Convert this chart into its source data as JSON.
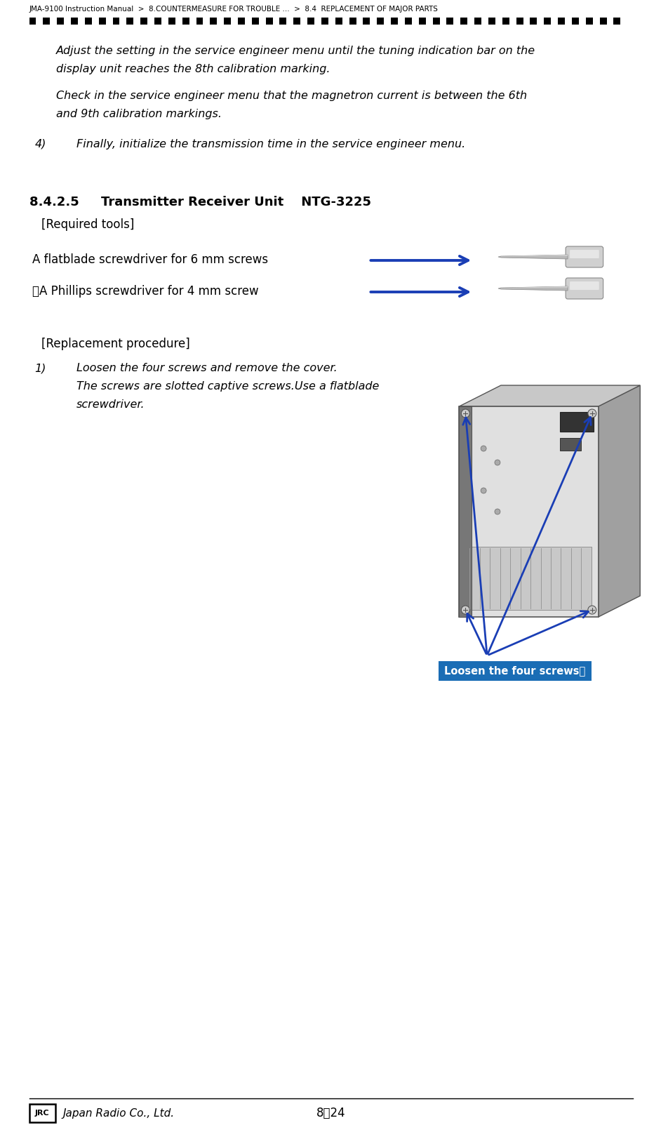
{
  "breadcrumb": "JMA-9100 Instruction Manual  >  8.COUNTERMEASURE FOR TROUBLE ...  >  8.4  REPLACEMENT OF MAJOR PARTS",
  "breadcrumb_fontsize": 7.5,
  "page_bg": "#ffffff",
  "dash_color": "#000000",
  "body_text_color": "#000000",
  "step4_label": "4)",
  "step4_text": "Finally, initialize the transmission time in the service engineer menu.",
  "section_title": "8.4.2.5     Transmitter Receiver Unit    NTG-3225",
  "required_tools_label": "[Required tools]",
  "tool1_text": "A flatblade screwdriver for 6 mm screws",
  "tool2_text": "・A Phillips screwdriver for 4 mm screw",
  "replacement_label": "[Replacement procedure]",
  "step1_label": "1)",
  "step1_line1": "Loosen the four screws and remove the cover.",
  "step1_line2": "The screws are slotted captive screws.Use a flatblade",
  "step1_line3": "screwdriver.",
  "caption_box_text": "Loosen the four screws．",
  "caption_box_bg": "#1a6db5",
  "caption_box_border": "#1a6db5",
  "caption_text_color": "#ffffff",
  "arrow_color": "#1a3eb5",
  "page_number": "8－24",
  "footer_logo_text": "JRC",
  "footer_brand_text": "Japan Radio Co., Ltd.",
  "lm": 0.044,
  "rm": 0.956,
  "indent": 0.085,
  "step_indent": 0.115
}
